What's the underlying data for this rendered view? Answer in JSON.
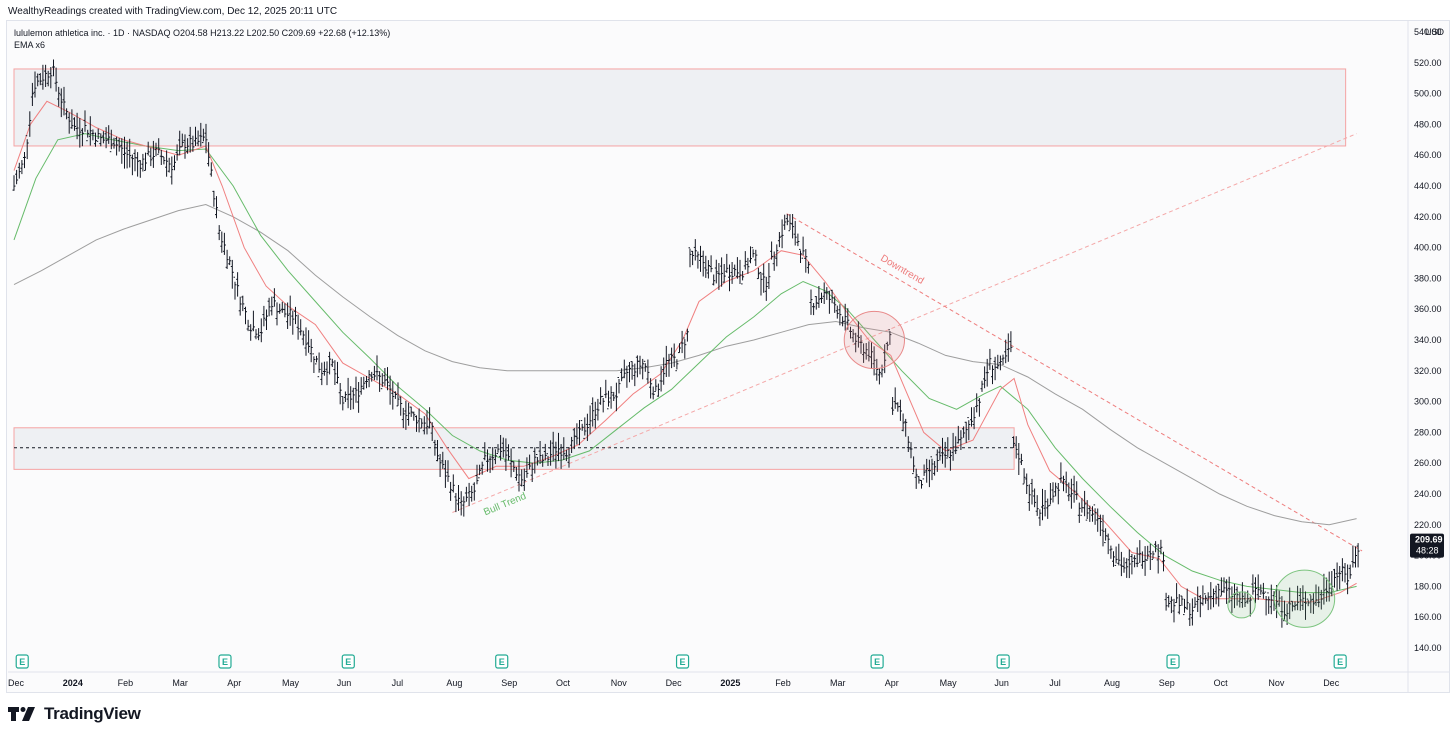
{
  "credit": "WealthyReadings created with TradingView.com, Dec 12, 2025 20:11 UTC",
  "legend": {
    "line1": "lululemon athletica inc. · 1D · NASDAQ  O204.58  H213.22  L202.50  C209.69  +22.68 (+12.13%)",
    "line2": "EMA x6"
  },
  "brand": "TradingView",
  "colors": {
    "up": "#131722",
    "ema_fast": "#f08080",
    "ema_mid": "#66bb6a",
    "ema_slow": "#9e9e9e",
    "zone_border": "#f5a3a3",
    "zone_fill": "#eef0f3",
    "price_tag": "#131722"
  },
  "chart_data": {
    "type": "ohlc",
    "title": "lululemon athletica inc. · 1D · NASDAQ",
    "ylabel": "USD",
    "ylim": [
      140,
      550
    ],
    "y_ticks": [
      "540.00",
      "520.00",
      "500.00",
      "480.00",
      "460.00",
      "440.00",
      "420.00",
      "400.00",
      "380.00",
      "360.00",
      "340.00",
      "320.00",
      "300.00",
      "280.00",
      "260.00",
      "240.00",
      "220.00",
      "200.00",
      "180.00",
      "160.00",
      "140.00"
    ],
    "x_labels": [
      "Dec",
      "2024",
      "Feb",
      "Mar",
      "Apr",
      "May",
      "Jun",
      "Jul",
      "Aug",
      "Sep",
      "Oct",
      "Nov",
      "Dec",
      "2025",
      "Feb",
      "Mar",
      "Apr",
      "May",
      "Jun",
      "Jul",
      "Aug",
      "Sep",
      "Oct",
      "Nov",
      "Dec"
    ],
    "x_label_month_index": [
      0,
      1,
      2,
      3,
      4,
      5,
      6,
      7,
      8,
      9,
      10,
      11,
      12,
      13,
      14,
      15,
      16,
      17,
      18,
      19,
      20,
      21,
      22,
      23,
      24
    ],
    "bold_labels": [
      "2024",
      "2025"
    ],
    "last_price": "209.69",
    "countdown": "48:28",
    "earnings_marker": "E",
    "earnings_month_positions": [
      0.15,
      3.85,
      6.1,
      8.9,
      12.2,
      15.75,
      18.05,
      21.15,
      24.2
    ],
    "price_path": [
      [
        0.0,
        440
      ],
      [
        0.2,
        458
      ],
      [
        0.35,
        505
      ],
      [
        0.5,
        510
      ],
      [
        0.7,
        516
      ],
      [
        0.9,
        492
      ],
      [
        1.1,
        478
      ],
      [
        1.3,
        478
      ],
      [
        1.6,
        470
      ],
      [
        1.8,
        470
      ],
      [
        2.0,
        462
      ],
      [
        2.3,
        455
      ],
      [
        2.6,
        462
      ],
      [
        2.9,
        453
      ],
      [
        3.1,
        468
      ],
      [
        3.3,
        467
      ],
      [
        3.5,
        472
      ],
      [
        3.75,
        410
      ],
      [
        3.9,
        395
      ],
      [
        4.1,
        370
      ],
      [
        4.3,
        350
      ],
      [
        4.5,
        345
      ],
      [
        4.7,
        365
      ],
      [
        4.9,
        358
      ],
      [
        5.1,
        355
      ],
      [
        5.35,
        340
      ],
      [
        5.6,
        320
      ],
      [
        5.8,
        325
      ],
      [
        6.0,
        300
      ],
      [
        6.25,
        305
      ],
      [
        6.5,
        320
      ],
      [
        6.8,
        312
      ],
      [
        7.0,
        298
      ],
      [
        7.3,
        290
      ],
      [
        7.6,
        285
      ],
      [
        7.75,
        262
      ],
      [
        7.95,
        248
      ],
      [
        8.15,
        232
      ],
      [
        8.4,
        242
      ],
      [
        8.6,
        262
      ],
      [
        8.9,
        270
      ],
      [
        9.1,
        258
      ],
      [
        9.3,
        248
      ],
      [
        9.5,
        262
      ],
      [
        9.7,
        262
      ],
      [
        9.9,
        270
      ],
      [
        10.1,
        268
      ],
      [
        10.4,
        282
      ],
      [
        10.7,
        300
      ],
      [
        11.0,
        305
      ],
      [
        11.2,
        320
      ],
      [
        11.5,
        325
      ],
      [
        11.7,
        305
      ],
      [
        11.9,
        325
      ],
      [
        12.1,
        328
      ],
      [
        12.3,
        345
      ],
      [
        12.4,
        395
      ],
      [
        12.6,
        390
      ],
      [
        12.8,
        380
      ],
      [
        13.0,
        385
      ],
      [
        13.3,
        385
      ],
      [
        13.5,
        395
      ],
      [
        13.7,
        375
      ],
      [
        13.9,
        400
      ],
      [
        14.1,
        418
      ],
      [
        14.3,
        405
      ],
      [
        14.5,
        385
      ],
      [
        14.6,
        365
      ],
      [
        14.8,
        370
      ],
      [
        15.0,
        362
      ],
      [
        15.2,
        350
      ],
      [
        15.4,
        338
      ],
      [
        15.6,
        332
      ],
      [
        15.8,
        318
      ],
      [
        16.0,
        345
      ],
      [
        16.1,
        298
      ],
      [
        16.3,
        280
      ],
      [
        16.5,
        245
      ],
      [
        16.7,
        255
      ],
      [
        16.9,
        262
      ],
      [
        17.1,
        268
      ],
      [
        17.3,
        275
      ],
      [
        17.6,
        300
      ],
      [
        17.8,
        325
      ],
      [
        18.0,
        322
      ],
      [
        18.2,
        335
      ],
      [
        18.3,
        270
      ],
      [
        18.5,
        245
      ],
      [
        18.7,
        228
      ],
      [
        18.9,
        238
      ],
      [
        19.1,
        248
      ],
      [
        19.3,
        240
      ],
      [
        19.5,
        232
      ],
      [
        19.8,
        225
      ],
      [
        20.1,
        200
      ],
      [
        20.3,
        190
      ],
      [
        20.5,
        198
      ],
      [
        20.8,
        205
      ],
      [
        21.0,
        200
      ],
      [
        21.1,
        170
      ],
      [
        21.3,
        168
      ],
      [
        21.5,
        165
      ],
      [
        21.8,
        173
      ],
      [
        22.0,
        178
      ],
      [
        22.2,
        175
      ],
      [
        22.4,
        172
      ],
      [
        22.5,
        170
      ],
      [
        22.7,
        178
      ],
      [
        23.0,
        172
      ],
      [
        23.2,
        165
      ],
      [
        23.4,
        168
      ],
      [
        23.6,
        172
      ],
      [
        23.8,
        170
      ],
      [
        24.0,
        182
      ],
      [
        24.2,
        190
      ],
      [
        24.35,
        185
      ],
      [
        24.55,
        208
      ]
    ],
    "ema_fast": [
      [
        0.0,
        450
      ],
      [
        0.3,
        480
      ],
      [
        0.6,
        495
      ],
      [
        1.0,
        488
      ],
      [
        1.5,
        478
      ],
      [
        2.0,
        470
      ],
      [
        2.5,
        465
      ],
      [
        3.0,
        460
      ],
      [
        3.5,
        466
      ],
      [
        3.8,
        440
      ],
      [
        4.2,
        400
      ],
      [
        4.6,
        375
      ],
      [
        5.0,
        362
      ],
      [
        5.5,
        350
      ],
      [
        6.0,
        325
      ],
      [
        6.5,
        315
      ],
      [
        7.0,
        305
      ],
      [
        7.5,
        292
      ],
      [
        7.9,
        270
      ],
      [
        8.3,
        250
      ],
      [
        8.8,
        258
      ],
      [
        9.3,
        258
      ],
      [
        9.8,
        264
      ],
      [
        10.3,
        272
      ],
      [
        10.8,
        288
      ],
      [
        11.3,
        305
      ],
      [
        11.8,
        318
      ],
      [
        12.2,
        340
      ],
      [
        12.5,
        365
      ],
      [
        13.0,
        378
      ],
      [
        13.5,
        385
      ],
      [
        14.0,
        398
      ],
      [
        14.4,
        395
      ],
      [
        14.8,
        378
      ],
      [
        15.2,
        358
      ],
      [
        15.6,
        340
      ],
      [
        16.0,
        330
      ],
      [
        16.3,
        305
      ],
      [
        16.6,
        280
      ],
      [
        17.0,
        268
      ],
      [
        17.5,
        275
      ],
      [
        18.0,
        308
      ],
      [
        18.25,
        315
      ],
      [
        18.5,
        285
      ],
      [
        18.9,
        255
      ],
      [
        19.4,
        240
      ],
      [
        19.9,
        222
      ],
      [
        20.4,
        202
      ],
      [
        20.9,
        198
      ],
      [
        21.3,
        180
      ],
      [
        21.7,
        172
      ],
      [
        22.2,
        172
      ],
      [
        22.7,
        172
      ],
      [
        23.2,
        170
      ],
      [
        23.7,
        170
      ],
      [
        24.2,
        176
      ],
      [
        24.5,
        182
      ]
    ],
    "ema_mid": [
      [
        0.0,
        405
      ],
      [
        0.4,
        445
      ],
      [
        0.8,
        470
      ],
      [
        1.3,
        474
      ],
      [
        1.8,
        470
      ],
      [
        2.4,
        466
      ],
      [
        3.0,
        463
      ],
      [
        3.5,
        464
      ],
      [
        4.0,
        440
      ],
      [
        4.5,
        408
      ],
      [
        5.0,
        385
      ],
      [
        5.5,
        365
      ],
      [
        6.0,
        345
      ],
      [
        6.5,
        328
      ],
      [
        7.0,
        310
      ],
      [
        7.5,
        295
      ],
      [
        8.0,
        278
      ],
      [
        8.5,
        268
      ],
      [
        9.0,
        262
      ],
      [
        9.5,
        260
      ],
      [
        10.0,
        262
      ],
      [
        10.5,
        268
      ],
      [
        11.0,
        282
      ],
      [
        11.5,
        296
      ],
      [
        12.0,
        308
      ],
      [
        12.5,
        325
      ],
      [
        13.0,
        342
      ],
      [
        13.5,
        355
      ],
      [
        14.0,
        370
      ],
      [
        14.4,
        378
      ],
      [
        14.8,
        372
      ],
      [
        15.2,
        360
      ],
      [
        15.7,
        340
      ],
      [
        16.2,
        320
      ],
      [
        16.7,
        302
      ],
      [
        17.2,
        295
      ],
      [
        17.7,
        305
      ],
      [
        18.0,
        310
      ],
      [
        18.5,
        295
      ],
      [
        19.0,
        270
      ],
      [
        19.5,
        250
      ],
      [
        20.0,
        232
      ],
      [
        20.5,
        215
      ],
      [
        21.0,
        200
      ],
      [
        21.5,
        190
      ],
      [
        22.0,
        184
      ],
      [
        22.5,
        180
      ],
      [
        23.0,
        178
      ],
      [
        23.5,
        176
      ],
      [
        24.0,
        176
      ],
      [
        24.5,
        180
      ]
    ],
    "ema_slow": [
      [
        0.0,
        376
      ],
      [
        0.5,
        385
      ],
      [
        1.0,
        395
      ],
      [
        1.5,
        405
      ],
      [
        2.0,
        412
      ],
      [
        2.5,
        418
      ],
      [
        3.0,
        424
      ],
      [
        3.5,
        428
      ],
      [
        4.0,
        420
      ],
      [
        4.5,
        410
      ],
      [
        5.0,
        398
      ],
      [
        5.5,
        382
      ],
      [
        6.0,
        368
      ],
      [
        6.5,
        355
      ],
      [
        7.0,
        343
      ],
      [
        7.5,
        333
      ],
      [
        8.0,
        326
      ],
      [
        8.5,
        322
      ],
      [
        9.0,
        320
      ],
      [
        9.5,
        320
      ],
      [
        10.0,
        320
      ],
      [
        10.5,
        320
      ],
      [
        11.0,
        320
      ],
      [
        11.5,
        322
      ],
      [
        12.0,
        325
      ],
      [
        12.5,
        330
      ],
      [
        13.0,
        336
      ],
      [
        13.5,
        340
      ],
      [
        14.0,
        345
      ],
      [
        14.5,
        350
      ],
      [
        15.0,
        352
      ],
      [
        15.5,
        348
      ],
      [
        16.0,
        345
      ],
      [
        16.5,
        338
      ],
      [
        17.0,
        330
      ],
      [
        17.5,
        326
      ],
      [
        18.0,
        324
      ],
      [
        18.5,
        316
      ],
      [
        19.0,
        305
      ],
      [
        19.5,
        295
      ],
      [
        20.0,
        282
      ],
      [
        20.5,
        270
      ],
      [
        21.0,
        260
      ],
      [
        21.5,
        250
      ],
      [
        22.0,
        240
      ],
      [
        22.5,
        232
      ],
      [
        23.0,
        226
      ],
      [
        23.5,
        222
      ],
      [
        24.0,
        220
      ],
      [
        24.5,
        224
      ]
    ],
    "zones": [
      {
        "from_month": 0.0,
        "to_month": 24.3,
        "top": 516,
        "bottom": 466
      },
      {
        "from_month": 0.0,
        "to_month": 18.25,
        "top": 283,
        "bottom": 256
      }
    ],
    "support_line": {
      "value": 270,
      "from_month": 0.0,
      "to_month": 18.25
    },
    "bull_trendline": {
      "label": "Bull Trend",
      "from": [
        8.0,
        228
      ],
      "to": [
        24.5,
        474
      ]
    },
    "downtrend_line": {
      "label": "Downtrend",
      "from": [
        14.1,
        422
      ],
      "to": [
        24.6,
        203
      ]
    },
    "circles": [
      {
        "month": 15.7,
        "value": 340,
        "r_months": 0.55,
        "kind": "red"
      },
      {
        "month": 22.4,
        "value": 168,
        "r_months": 0.25,
        "kind": "green"
      },
      {
        "month": 23.55,
        "value": 172,
        "r_months": 0.55,
        "kind": "green"
      }
    ]
  }
}
